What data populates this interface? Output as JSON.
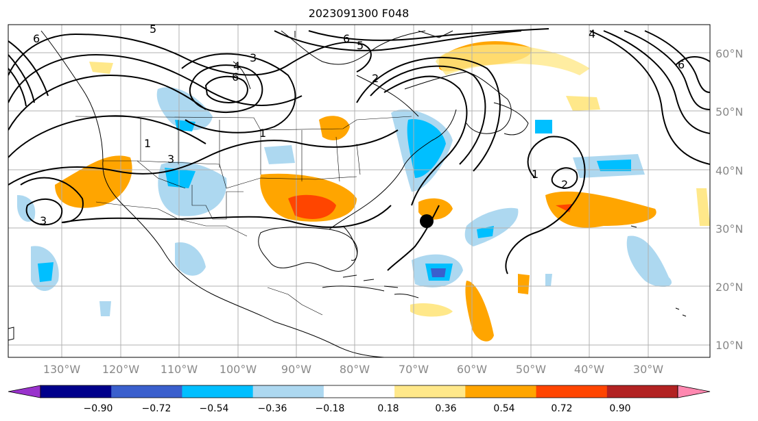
{
  "title": "2023091300 F048",
  "latitudes": [
    "60°N",
    "50°N",
    "40°N",
    "30°N",
    "20°N",
    "10°N"
  ],
  "longitudes": [
    "130°W",
    "120°W",
    "110°W",
    "100°W",
    "90°W",
    "80°W",
    "70°W",
    "60°W",
    "50°W",
    "40°W",
    "30°W"
  ],
  "colorbar": {
    "colors": [
      "#9932cc",
      "#00008b",
      "#3a5fcd",
      "#00bfff",
      "#add8f0",
      "#ffffff",
      "#ffe88a",
      "#ffa500",
      "#ff4500",
      "#b22222",
      "#ff88b0"
    ],
    "labels": [
      "−0.90",
      "−0.72",
      "−0.54",
      "−0.36",
      "−0.18",
      "0.18",
      "0.36",
      "0.54",
      "0.72",
      "0.90"
    ]
  },
  "contour_labels": [
    "5",
    "6",
    "3",
    "4",
    "6",
    "2",
    "6",
    "5",
    "4",
    "6",
    "1",
    "3",
    "1",
    "3",
    "1",
    "2"
  ],
  "marker": "storm-center"
}
